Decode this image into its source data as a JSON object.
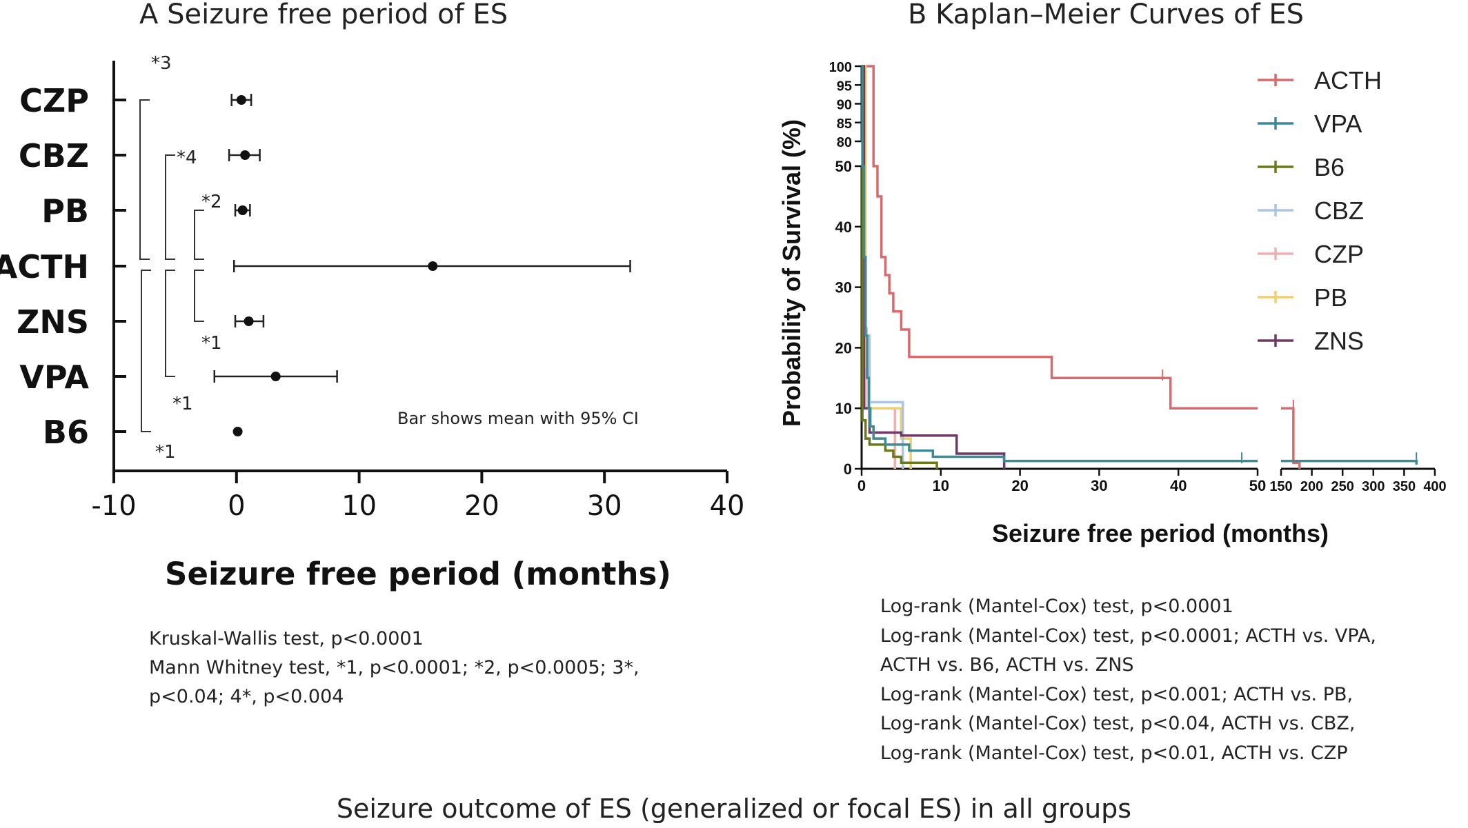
{
  "figure_caption": "Seizure outcome of ES (generalized or focal ES) in all groups",
  "chart_data": [
    {
      "panel": "A",
      "type": "scatter",
      "title": "A  Seizure free period of ES",
      "xlabel": "Seizure free period (months)",
      "xlim": [
        -10,
        40
      ],
      "xticks": [
        "-10",
        "0",
        "10",
        "20",
        "30",
        "40"
      ],
      "orientation": "horizontal",
      "categories": [
        "CZP",
        "CBZ",
        "PB",
        "ACTH",
        "ZNS",
        "VPA",
        "B6"
      ],
      "points": [
        {
          "group": "CZP",
          "mean": 0.4,
          "ci_low": -0.4,
          "ci_high": 1.2
        },
        {
          "group": "CBZ",
          "mean": 0.7,
          "ci_low": -0.6,
          "ci_high": 1.9
        },
        {
          "group": "PB",
          "mean": 0.5,
          "ci_low": -0.1,
          "ci_high": 1.1
        },
        {
          "group": "ACTH",
          "mean": 16.0,
          "ci_low": -0.2,
          "ci_high": 32.1
        },
        {
          "group": "ZNS",
          "mean": 1.0,
          "ci_low": -0.1,
          "ci_high": 2.2
        },
        {
          "group": "VPA",
          "mean": 3.2,
          "ci_low": -1.8,
          "ci_high": 8.2
        },
        {
          "group": "B6",
          "mean": 0.1,
          "ci_low": 0.1,
          "ci_high": 0.1
        }
      ],
      "comparisons": [
        {
          "from": "CZP",
          "to": "ACTH",
          "label": "*3"
        },
        {
          "from": "CBZ",
          "to": "ACTH",
          "label": "*4"
        },
        {
          "from": "PB",
          "to": "ACTH",
          "label": "*2"
        },
        {
          "from": "ACTH",
          "to": "ZNS",
          "label": "*1"
        },
        {
          "from": "ACTH",
          "to": "VPA",
          "label": "*1"
        },
        {
          "from": "ACTH",
          "to": "B6",
          "label": "*1"
        }
      ],
      "annotation": "Bar shows mean with 95% CI",
      "stats_text": [
        "Kruskal-Wallis test, p<0.0001",
        "Mann Whitney test, *1, p<0.0001;  *2, p<0.0005; 3*,",
        "p<0.04; 4*, p<0.004"
      ]
    },
    {
      "panel": "B",
      "type": "line",
      "title": "B  Kaplan–Meier Curves of ES",
      "xlabel": "Seizure free period (months)",
      "ylabel": "Probability of Survival (%)",
      "x_segments": [
        {
          "range": [
            0,
            50
          ],
          "ticks": [
            "0",
            "10",
            "20",
            "30",
            "40",
            "50"
          ]
        },
        {
          "range": [
            150,
            400
          ],
          "ticks": [
            "150",
            "200",
            "250",
            "300",
            "350",
            "400"
          ]
        }
      ],
      "y_segments": [
        {
          "range": [
            0,
            50
          ],
          "ticks": [
            "0",
            "10",
            "20",
            "30",
            "40",
            "50"
          ]
        },
        {
          "range": [
            80,
            100
          ],
          "ticks": [
            "80",
            "85",
            "90",
            "95",
            "100"
          ]
        }
      ],
      "legend_position": "top-right",
      "series": [
        {
          "name": "ACTH",
          "color": "#d9696b",
          "steps": [
            [
              0,
              100
            ],
            [
              1.5,
              50
            ],
            [
              2,
              45
            ],
            [
              2.5,
              35
            ],
            [
              3,
              32
            ],
            [
              3.5,
              29
            ],
            [
              4,
              26
            ],
            [
              5,
              23
            ],
            [
              6,
              18.5
            ],
            [
              24,
              15
            ],
            [
              39,
              10
            ],
            [
              170,
              1
            ],
            [
              180,
              0
            ]
          ],
          "censors": [
            [
              38,
              15.5
            ],
            [
              170,
              10.5
            ]
          ]
        },
        {
          "name": "VPA",
          "color": "#3c8a98",
          "steps": [
            [
              0,
              100
            ],
            [
              0.1,
              50
            ],
            [
              0.3,
              35
            ],
            [
              0.5,
              22
            ],
            [
              0.7,
              15
            ],
            [
              0.9,
              10
            ],
            [
              1.1,
              7
            ],
            [
              1.5,
              5
            ],
            [
              3,
              4
            ],
            [
              6,
              3
            ],
            [
              9,
              2
            ],
            [
              18,
              1.3
            ],
            [
              370,
              0.7
            ]
          ],
          "censors": [
            [
              48,
              1.8
            ],
            [
              370,
              1.8
            ]
          ]
        },
        {
          "name": "B6",
          "color": "#6b7a18",
          "steps": [
            [
              0,
              100
            ],
            [
              0.1,
              8
            ],
            [
              0.5,
              5
            ],
            [
              1,
              4
            ],
            [
              3,
              3
            ],
            [
              4,
              2
            ],
            [
              5,
              1
            ],
            [
              9.5,
              0
            ]
          ],
          "censors": []
        },
        {
          "name": "CBZ",
          "color": "#a9c4e6",
          "steps": [
            [
              0,
              100
            ],
            [
              0.3,
              22
            ],
            [
              1,
              11
            ],
            [
              4,
              11
            ],
            [
              5,
              11
            ],
            [
              5.2,
              0
            ]
          ],
          "censors": [
            [
              0.7,
              22.5
            ]
          ]
        },
        {
          "name": "CZP",
          "color": "#f0b0b0",
          "steps": [
            [
              0,
              100
            ],
            [
              0.5,
              10
            ],
            [
              4,
              10
            ],
            [
              4.2,
              0
            ]
          ],
          "censors": []
        },
        {
          "name": "PB",
          "color": "#f2cf6a",
          "steps": [
            [
              0,
              100
            ],
            [
              0.5,
              17
            ],
            [
              1,
              10
            ],
            [
              3,
              10
            ],
            [
              5,
              5
            ],
            [
              6,
              5
            ],
            [
              6.2,
              0
            ]
          ],
          "censors": []
        },
        {
          "name": "ZNS",
          "color": "#6e3a63",
          "steps": [
            [
              0,
              100
            ],
            [
              0.3,
              10
            ],
            [
              1,
              6
            ],
            [
              5,
              5.5
            ],
            [
              12,
              2.5
            ],
            [
              18,
              0
            ]
          ],
          "censors": []
        }
      ],
      "stats_text": [
        "Log-rank (Mantel-Cox) test, p<0.0001",
        "Log-rank (Mantel-Cox) test, p<0.0001; ACTH vs. VPA,",
        "ACTH vs. B6, ACTH vs. ZNS",
        "Log-rank (Mantel-Cox) test, p<0.001; ACTH vs. PB,",
        "Log-rank (Mantel-Cox) test, p<0.04, ACTH vs. CBZ,",
        "Log-rank (Mantel-Cox) test, p<0.01, ACTH vs. CZP"
      ]
    }
  ]
}
